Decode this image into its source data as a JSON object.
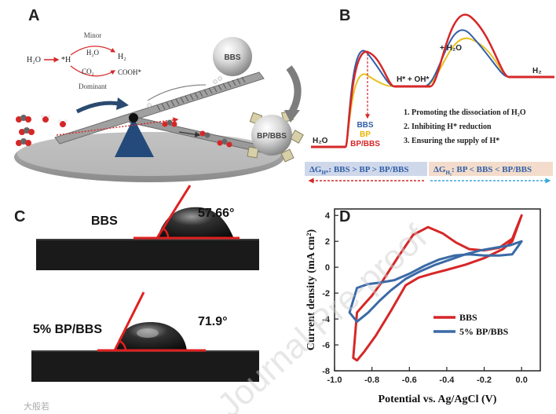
{
  "panel_labels": {
    "a": "A",
    "b": "B",
    "c": "C",
    "d": "D"
  },
  "panel_a": {
    "h2o": "H₂O",
    "minor": "Minor",
    "h2o_mid": "H₂O",
    "h2": "H₂",
    "h_star": "*H",
    "co2": "CO₂",
    "cooh": "COOH*",
    "dominant": "Dominant",
    "bbs": "BBS",
    "bp_bbs": "BP/BBS"
  },
  "panel_b": {
    "h2o_label": "H₂O",
    "h_oh_label": "H* + OH*",
    "plus_h2o": "+ H₂O",
    "h2_label": "H₂",
    "legend": [
      {
        "name": "BBS",
        "color": "#2f5ea8"
      },
      {
        "name": "BP",
        "color": "#e8c020"
      },
      {
        "name": "BP/BBS",
        "color": "#d62728"
      }
    ],
    "points": [
      "1.   Promoting the dissociation of H₂O",
      "2.   Inhibiting H* reduction",
      "3.   Ensuring the supply of H*"
    ],
    "delta_h_star": "ΔG",
    "delta_h_star_sub": "H*",
    "delta_h_star_rest": ": BBS > BP > BP/BBS",
    "delta_h2": "ΔG",
    "delta_h2_sub": "H₂",
    "delta_h2_rest": ": BP < BBS < BP/BBS"
  },
  "panel_c": {
    "top_label": "BBS",
    "top_angle": "57.66°",
    "bottom_label": "5% BP/BBS",
    "bottom_angle": "71.9°",
    "contact_angle_deg": [
      57.66,
      71.9
    ]
  },
  "watermark": "Journal Pre-proof",
  "source_watermark": "大般若",
  "chart_data": {
    "type": "line",
    "xlabel": "Potential vs. Ag/AgCl (V)",
    "ylabel": "Current density (mA cm²)",
    "xlim": [
      -1.0,
      0.1
    ],
    "ylim": [
      -8,
      4.5
    ],
    "xticks": [
      -1.0,
      -0.8,
      -0.6,
      -0.4,
      -0.2,
      0.0
    ],
    "xtick_labels": [
      "-1.0",
      "-0.8",
      "-0.6",
      "-0.4",
      "-0.2",
      "0.0"
    ],
    "yticks": [
      -8,
      -6,
      -4,
      -2,
      0,
      2,
      4
    ],
    "ytick_labels": [
      "-8",
      "-6",
      "-4",
      "-2",
      "0",
      "2",
      "4"
    ],
    "legend_position": "lower-right",
    "series": [
      {
        "name": "BBS",
        "color": "#d62728",
        "x": [
          0.0,
          -0.05,
          -0.12,
          -0.2,
          -0.28,
          -0.35,
          -0.42,
          -0.5,
          -0.58,
          -0.66,
          -0.74,
          -0.8,
          -0.85,
          -0.88,
          -0.9,
          -0.88,
          -0.84,
          -0.78,
          -0.7,
          -0.62,
          -0.55,
          -0.48,
          -0.4,
          -0.3,
          -0.2,
          -0.1,
          -0.05,
          0.0
        ],
        "y": [
          4.0,
          2.2,
          1.5,
          1.3,
          1.4,
          1.9,
          2.6,
          3.1,
          2.5,
          0.8,
          -1.0,
          -2.2,
          -3.0,
          -3.5,
          -7.0,
          -7.2,
          -6.5,
          -5.3,
          -3.4,
          -1.4,
          -0.8,
          -0.5,
          -0.2,
          0.2,
          0.7,
          1.4,
          2.0,
          4.0
        ]
      },
      {
        "name": "5% BP/BBS",
        "color": "#3b6aa6",
        "x": [
          0.0,
          -0.05,
          -0.12,
          -0.2,
          -0.28,
          -0.36,
          -0.44,
          -0.52,
          -0.6,
          -0.68,
          -0.76,
          -0.82,
          -0.88,
          -0.92,
          -0.88,
          -0.82,
          -0.76,
          -0.7,
          -0.62,
          -0.54,
          -0.46,
          -0.38,
          -0.3,
          -0.22,
          -0.14,
          -0.06,
          0.0
        ],
        "y": [
          2.0,
          1.0,
          0.9,
          0.9,
          1.0,
          0.9,
          0.6,
          0.1,
          -0.5,
          -1.0,
          -1.2,
          -1.3,
          -1.6,
          -3.5,
          -4.2,
          -3.5,
          -2.6,
          -1.8,
          -0.9,
          -0.3,
          0.2,
          0.6,
          1.0,
          1.3,
          1.5,
          1.7,
          2.0
        ]
      }
    ]
  }
}
